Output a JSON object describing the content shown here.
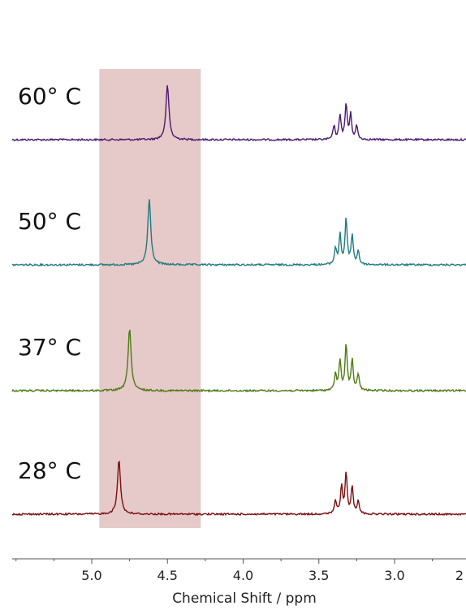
{
  "chart_data": {
    "type": "line",
    "xlabel": "Chemical Shift / ppm",
    "xlim": [
      5.55,
      2.0
    ],
    "x_reversed": true,
    "xticks": [
      5.0,
      4.5,
      4.0,
      3.5,
      3.0,
      2.0
    ],
    "xtick_labels": [
      "5.0",
      "4.5",
      "4.0",
      "3.5",
      "3.0",
      "2"
    ],
    "highlight_region": {
      "from_ppm": 4.95,
      "to_ppm": 4.28,
      "color": "#dcb2b2"
    },
    "series": [
      {
        "name": "60° C",
        "color": "#4b1a6e",
        "peaks": [
          {
            "ppm": 4.5,
            "height": 1.0,
            "width": 0.012
          },
          {
            "ppm": 3.4,
            "height": 0.25,
            "width": 0.008
          },
          {
            "ppm": 3.36,
            "height": 0.45,
            "width": 0.008
          },
          {
            "ppm": 3.32,
            "height": 0.65,
            "width": 0.008
          },
          {
            "ppm": 3.29,
            "height": 0.45,
            "width": 0.008
          },
          {
            "ppm": 3.25,
            "height": 0.25,
            "width": 0.008
          }
        ]
      },
      {
        "name": "50° C",
        "color": "#1f7a80",
        "peaks": [
          {
            "ppm": 4.62,
            "height": 1.2,
            "width": 0.012
          },
          {
            "ppm": 3.39,
            "height": 0.3,
            "width": 0.008
          },
          {
            "ppm": 3.36,
            "height": 0.55,
            "width": 0.008
          },
          {
            "ppm": 3.32,
            "height": 0.85,
            "width": 0.008
          },
          {
            "ppm": 3.28,
            "height": 0.55,
            "width": 0.008
          },
          {
            "ppm": 3.24,
            "height": 0.25,
            "width": 0.008
          }
        ]
      },
      {
        "name": "37° C",
        "color": "#4e7a14",
        "peaks": [
          {
            "ppm": 4.75,
            "height": 1.15,
            "width": 0.012
          },
          {
            "ppm": 3.39,
            "height": 0.3,
            "width": 0.008
          },
          {
            "ppm": 3.36,
            "height": 0.55,
            "width": 0.008
          },
          {
            "ppm": 3.32,
            "height": 0.85,
            "width": 0.008
          },
          {
            "ppm": 3.28,
            "height": 0.55,
            "width": 0.008
          },
          {
            "ppm": 3.24,
            "height": 0.3,
            "width": 0.008
          }
        ]
      },
      {
        "name": "28° C",
        "color": "#7a1010",
        "peaks": [
          {
            "ppm": 4.82,
            "height": 1.0,
            "width": 0.012
          },
          {
            "ppm": 3.39,
            "height": 0.25,
            "width": 0.008
          },
          {
            "ppm": 3.35,
            "height": 0.5,
            "width": 0.008
          },
          {
            "ppm": 3.32,
            "height": 0.75,
            "width": 0.008
          },
          {
            "ppm": 3.28,
            "height": 0.5,
            "width": 0.008
          },
          {
            "ppm": 3.24,
            "height": 0.25,
            "width": 0.008
          }
        ]
      }
    ]
  }
}
